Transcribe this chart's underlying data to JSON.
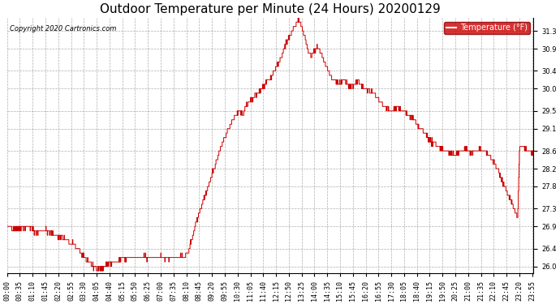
{
  "title": "Outdoor Temperature per Minute (24 Hours) 20200129",
  "copyright_text": "Copyright 2020 Cartronics.com",
  "legend_label": "Temperature (°F)",
  "legend_bg": "#cc0000",
  "legend_text_color": "#ffffff",
  "line_color": "#cc0000",
  "background_color": "#ffffff",
  "grid_color": "#999999",
  "ylim": [
    25.85,
    31.6
  ],
  "yticks": [
    26.0,
    26.4,
    26.9,
    27.3,
    27.8,
    28.2,
    28.6,
    29.1,
    29.5,
    30.0,
    30.4,
    30.9,
    31.3
  ],
  "title_fontsize": 11,
  "tick_fontsize": 6,
  "num_minutes": 1440,
  "x_tick_interval": 35,
  "keypoints": [
    [
      0,
      26.9
    ],
    [
      20,
      26.85
    ],
    [
      60,
      26.9
    ],
    [
      80,
      26.75
    ],
    [
      100,
      26.85
    ],
    [
      115,
      26.75
    ],
    [
      130,
      26.7
    ],
    [
      150,
      26.65
    ],
    [
      170,
      26.55
    ],
    [
      195,
      26.4
    ],
    [
      210,
      26.2
    ],
    [
      225,
      26.1
    ],
    [
      235,
      26.0
    ],
    [
      245,
      25.95
    ],
    [
      255,
      25.92
    ],
    [
      265,
      26.0
    ],
    [
      275,
      26.05
    ],
    [
      290,
      26.1
    ],
    [
      310,
      26.15
    ],
    [
      340,
      26.2
    ],
    [
      370,
      26.2
    ],
    [
      400,
      26.2
    ],
    [
      430,
      26.2
    ],
    [
      460,
      26.2
    ],
    [
      480,
      26.22
    ],
    [
      495,
      26.3
    ],
    [
      500,
      26.5
    ],
    [
      508,
      26.7
    ],
    [
      515,
      26.95
    ],
    [
      525,
      27.2
    ],
    [
      535,
      27.45
    ],
    [
      545,
      27.7
    ],
    [
      555,
      27.95
    ],
    [
      565,
      28.2
    ],
    [
      575,
      28.45
    ],
    [
      585,
      28.7
    ],
    [
      595,
      28.9
    ],
    [
      605,
      29.1
    ],
    [
      615,
      29.3
    ],
    [
      625,
      29.4
    ],
    [
      635,
      29.5
    ],
    [
      645,
      29.45
    ],
    [
      650,
      29.55
    ],
    [
      658,
      29.65
    ],
    [
      665,
      29.75
    ],
    [
      672,
      29.8
    ],
    [
      680,
      29.85
    ],
    [
      690,
      29.95
    ],
    [
      700,
      30.05
    ],
    [
      710,
      30.15
    ],
    [
      720,
      30.25
    ],
    [
      730,
      30.4
    ],
    [
      740,
      30.55
    ],
    [
      748,
      30.7
    ],
    [
      755,
      30.85
    ],
    [
      762,
      31.0
    ],
    [
      768,
      31.1
    ],
    [
      773,
      31.2
    ],
    [
      778,
      31.3
    ],
    [
      782,
      31.35
    ],
    [
      786,
      31.4
    ],
    [
      790,
      31.45
    ],
    [
      793,
      31.5
    ],
    [
      796,
      31.55
    ],
    [
      800,
      31.5
    ],
    [
      804,
      31.4
    ],
    [
      808,
      31.3
    ],
    [
      812,
      31.2
    ],
    [
      816,
      31.05
    ],
    [
      820,
      30.9
    ],
    [
      825,
      30.8
    ],
    [
      830,
      30.75
    ],
    [
      835,
      30.8
    ],
    [
      840,
      30.85
    ],
    [
      845,
      30.9
    ],
    [
      850,
      30.9
    ],
    [
      855,
      30.85
    ],
    [
      860,
      30.75
    ],
    [
      870,
      30.55
    ],
    [
      880,
      30.35
    ],
    [
      890,
      30.2
    ],
    [
      900,
      30.15
    ],
    [
      910,
      30.1
    ],
    [
      915,
      30.15
    ],
    [
      920,
      30.2
    ],
    [
      925,
      30.15
    ],
    [
      930,
      30.1
    ],
    [
      940,
      30.05
    ],
    [
      950,
      30.1
    ],
    [
      960,
      30.15
    ],
    [
      965,
      30.1
    ],
    [
      970,
      30.05
    ],
    [
      980,
      30.0
    ],
    [
      990,
      29.95
    ],
    [
      1000,
      29.9
    ],
    [
      1010,
      29.8
    ],
    [
      1020,
      29.7
    ],
    [
      1030,
      29.6
    ],
    [
      1040,
      29.55
    ],
    [
      1050,
      29.5
    ],
    [
      1060,
      29.55
    ],
    [
      1065,
      29.6
    ],
    [
      1070,
      29.55
    ],
    [
      1080,
      29.5
    ],
    [
      1090,
      29.45
    ],
    [
      1100,
      29.4
    ],
    [
      1110,
      29.3
    ],
    [
      1120,
      29.2
    ],
    [
      1130,
      29.1
    ],
    [
      1140,
      29.0
    ],
    [
      1150,
      28.9
    ],
    [
      1160,
      28.8
    ],
    [
      1170,
      28.75
    ],
    [
      1180,
      28.7
    ],
    [
      1190,
      28.65
    ],
    [
      1200,
      28.6
    ],
    [
      1210,
      28.55
    ],
    [
      1220,
      28.5
    ],
    [
      1230,
      28.55
    ],
    [
      1240,
      28.6
    ],
    [
      1250,
      28.65
    ],
    [
      1260,
      28.6
    ],
    [
      1270,
      28.55
    ],
    [
      1280,
      28.6
    ],
    [
      1290,
      28.65
    ],
    [
      1300,
      28.6
    ],
    [
      1310,
      28.55
    ],
    [
      1315,
      28.5
    ],
    [
      1320,
      28.45
    ],
    [
      1330,
      28.35
    ],
    [
      1340,
      28.2
    ],
    [
      1350,
      28.0
    ],
    [
      1360,
      27.8
    ],
    [
      1370,
      27.6
    ],
    [
      1380,
      27.4
    ],
    [
      1390,
      27.2
    ],
    [
      1395,
      27.05
    ],
    [
      1400,
      28.65
    ],
    [
      1405,
      28.7
    ],
    [
      1415,
      28.65
    ],
    [
      1425,
      28.6
    ],
    [
      1435,
      28.55
    ],
    [
      1439,
      28.5
    ]
  ]
}
